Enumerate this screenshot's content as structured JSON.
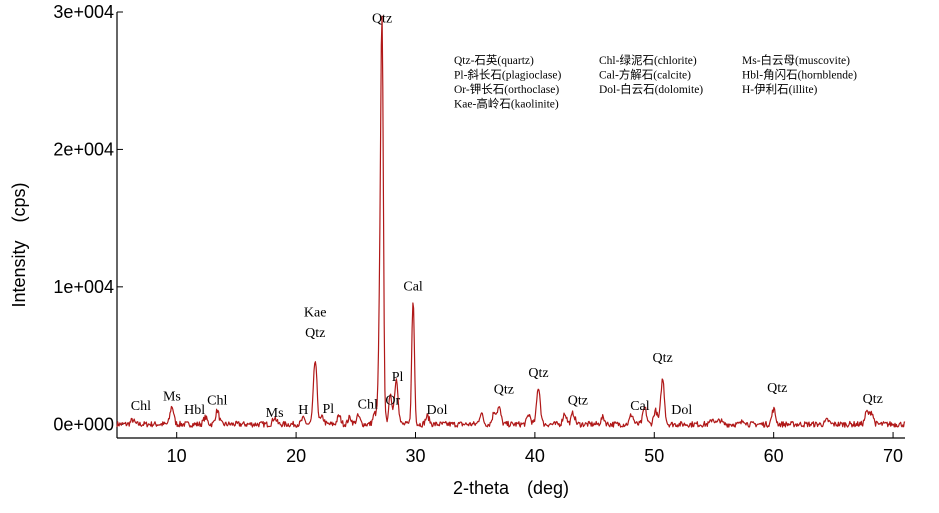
{
  "chart_data": {
    "type": "line",
    "xlabel": "2-theta　(deg)",
    "ylabel": "Intensity　(cps)",
    "xlim": [
      5,
      71
    ],
    "ylim": [
      -1000,
      30000
    ],
    "x_ticks": [
      10,
      20,
      30,
      40,
      50,
      60,
      70
    ],
    "y_ticks": [
      {
        "value": 0,
        "label": "0e+000"
      },
      {
        "value": 10000,
        "label": "1e+004"
      },
      {
        "value": 20000,
        "label": "2e+004"
      },
      {
        "value": 30000,
        "label": "3e+004"
      }
    ],
    "grid": false,
    "line_color": "#b01818",
    "baseline": 0,
    "peaks": [
      {
        "x": 6.3,
        "y": 300
      },
      {
        "x": 9.6,
        "y": 1300
      },
      {
        "x": 12.4,
        "y": 500
      },
      {
        "x": 13.4,
        "y": 1000
      },
      {
        "x": 18.2,
        "y": 500
      },
      {
        "x": 20.6,
        "y": 400
      },
      {
        "x": 21.6,
        "y": 4600
      },
      {
        "x": 22.2,
        "y": 500
      },
      {
        "x": 23.6,
        "y": 600
      },
      {
        "x": 24.5,
        "y": 500
      },
      {
        "x": 25.2,
        "y": 600
      },
      {
        "x": 26.6,
        "y": 800
      },
      {
        "x": 27.0,
        "y": 7000
      },
      {
        "x": 27.2,
        "y": 28200
      },
      {
        "x": 27.9,
        "y": 2000
      },
      {
        "x": 28.4,
        "y": 3300
      },
      {
        "x": 29.8,
        "y": 9000
      },
      {
        "x": 31.0,
        "y": 600
      },
      {
        "x": 35.5,
        "y": 800
      },
      {
        "x": 36.6,
        "y": 900
      },
      {
        "x": 37.0,
        "y": 1200
      },
      {
        "x": 39.5,
        "y": 700
      },
      {
        "x": 40.3,
        "y": 2700
      },
      {
        "x": 42.5,
        "y": 800
      },
      {
        "x": 43.2,
        "y": 800
      },
      {
        "x": 45.7,
        "y": 500
      },
      {
        "x": 48.1,
        "y": 700
      },
      {
        "x": 49.2,
        "y": 1200
      },
      {
        "x": 50.1,
        "y": 1000
      },
      {
        "x": 50.7,
        "y": 3300
      },
      {
        "x": 54.9,
        "y": 400
      },
      {
        "x": 55.5,
        "y": 300
      },
      {
        "x": 57.5,
        "y": 300
      },
      {
        "x": 60.0,
        "y": 1100
      },
      {
        "x": 64.5,
        "y": 300
      },
      {
        "x": 67.8,
        "y": 900
      },
      {
        "x": 68.2,
        "y": 900
      }
    ],
    "peak_labels": [
      {
        "text": "Chl",
        "x": 7.0,
        "y": 600
      },
      {
        "text": "Ms",
        "x": 9.6,
        "y": 1300
      },
      {
        "text": "Hbl",
        "x": 11.5,
        "y": 300
      },
      {
        "text": "Chl",
        "x": 13.4,
        "y": 1000
      },
      {
        "text": "Ms",
        "x": 18.2,
        "y": 100
      },
      {
        "text": "H",
        "x": 20.6,
        "y": 300
      },
      {
        "text": "Kae",
        "x": 21.6,
        "y": 7400
      },
      {
        "text": "Qtz",
        "x": 21.6,
        "y": 5900
      },
      {
        "text": "Pl",
        "x": 22.7,
        "y": 400
      },
      {
        "text": "Chl",
        "x": 26.0,
        "y": 700
      },
      {
        "text": "Qtz",
        "x": 27.2,
        "y": 28800
      },
      {
        "text": "Or",
        "x": 28.1,
        "y": 1000
      },
      {
        "text": "Pl",
        "x": 28.5,
        "y": 2700
      },
      {
        "text": "Cal",
        "x": 29.8,
        "y": 9300
      },
      {
        "text": "Dol",
        "x": 31.8,
        "y": 300
      },
      {
        "text": "Qtz",
        "x": 37.4,
        "y": 1800
      },
      {
        "text": "Qtz",
        "x": 40.3,
        "y": 3000
      },
      {
        "text": "Qtz",
        "x": 43.6,
        "y": 1000
      },
      {
        "text": "Cal",
        "x": 48.8,
        "y": 600
      },
      {
        "text": "Qtz",
        "x": 50.7,
        "y": 4100
      },
      {
        "text": "Dol",
        "x": 52.3,
        "y": 300
      },
      {
        "text": "Qtz",
        "x": 60.3,
        "y": 1900
      },
      {
        "text": "Qtz",
        "x": 68.3,
        "y": 1100
      }
    ],
    "legend": {
      "placement": "top-right",
      "columns": [
        [
          "Qtz-石英(quartz)",
          "Pl-斜长石(plagioclase)",
          "Or-钾长石(orthoclase)",
          "Kae-高岭石(kaolinite)"
        ],
        [
          "Chl-绿泥石(chlorite)",
          "Cal-方解石(calcite)",
          "Dol-白云石(dolomite)"
        ],
        [
          "Ms-白云母(muscovite)",
          "Hbl-角闪石(hornblende)",
          "H-伊利石(illite)"
        ]
      ]
    }
  }
}
